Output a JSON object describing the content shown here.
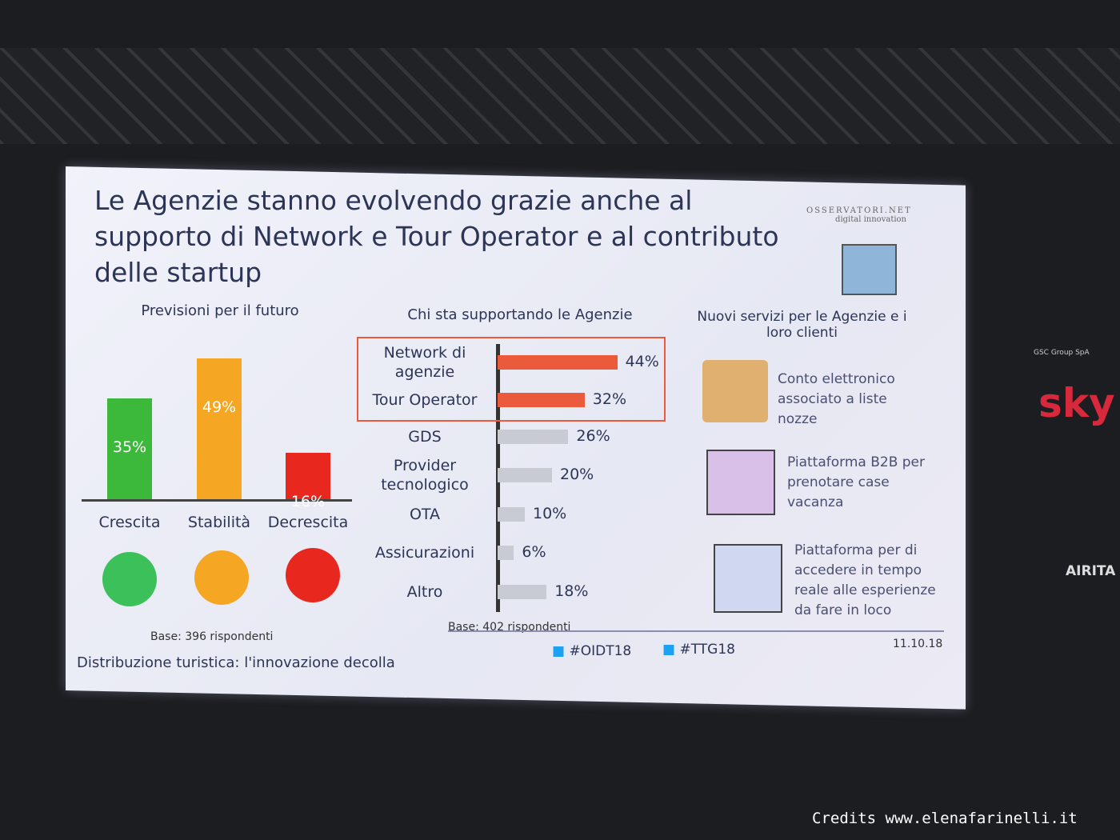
{
  "title": "Le Agenzie stanno evolvendo grazie anche al supporto di Network e Tour Operator e al contributo delle startup",
  "logo": {
    "name": "OSSERVATORI.NET",
    "tagline": "digital innovation"
  },
  "chart_data": [
    {
      "type": "bar",
      "title": "Previsioni per il futuro",
      "categories": [
        "Crescita",
        "Stabilità",
        "Decrescita"
      ],
      "values": [
        35,
        49,
        16
      ],
      "value_labels": [
        "35%",
        "49%",
        "16%"
      ],
      "colors": [
        "#3cb83a",
        "#f5a623",
        "#e8281e"
      ],
      "note": "Base: 396 rispondenti"
    },
    {
      "type": "hbar",
      "title": "Chi sta supportando le Agenzie",
      "categories": [
        "Network di agenzie",
        "Tour Operator",
        "GDS",
        "Provider tecnologico",
        "OTA",
        "Assicurazioni",
        "Altro"
      ],
      "values": [
        44,
        32,
        26,
        20,
        10,
        6,
        18
      ],
      "value_labels": [
        "44%",
        "32%",
        "26%",
        "20%",
        "10%",
        "6%",
        "18%"
      ],
      "colors": [
        "#ec5a3c",
        "#ec5a3c",
        "#c9cbd4",
        "#c9cbd4",
        "#c9cbd4",
        "#c9cbd4",
        "#c9cbd4"
      ],
      "note": "Base: 402 rispondenti"
    }
  ],
  "services": {
    "title": "Nuovi servizi per le Agenzie e i loro clienti",
    "items": [
      "Conto elettronico associato a liste nozze",
      "Piattaforma B2B per prenotare case vacanza",
      "Piattaforma per di accedere in tempo reale alle esperienze da fare in loco"
    ]
  },
  "footer": {
    "hashtags": [
      "#OIDT18",
      "#TTG18"
    ],
    "date": "11.10.18",
    "caption": "Distribuzione turistica: l'innovazione decolla"
  },
  "sponsors": [
    "GSC Group SpA",
    "sky",
    "AIRITA"
  ],
  "credits": "Credits www.elenafarinelli.it"
}
